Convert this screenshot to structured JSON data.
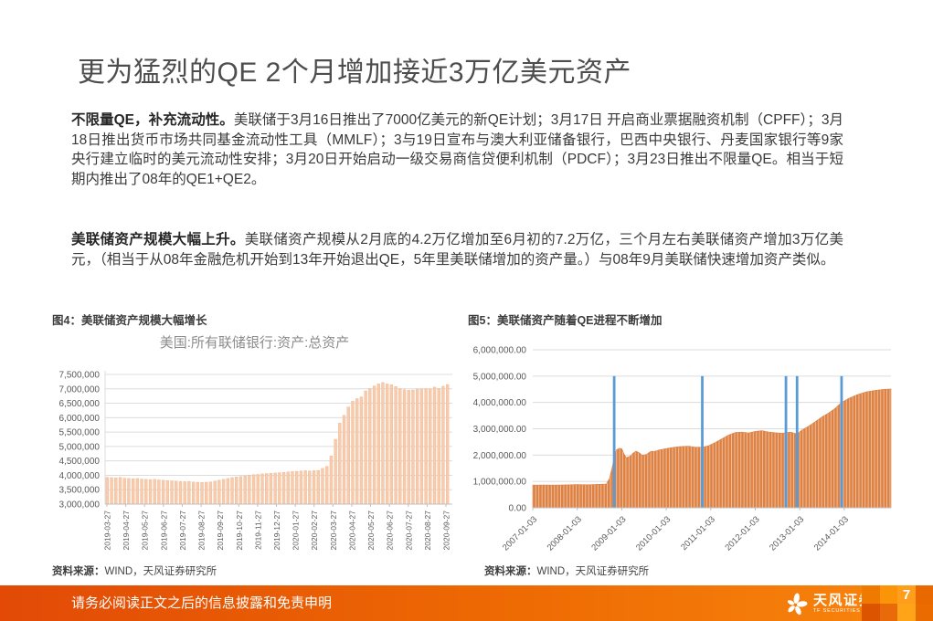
{
  "page": {
    "title": "更为猛烈的QE 2个月增加接近3万亿美元资产",
    "paragraphs": [
      {
        "lead": "不限量QE，补充流动性。",
        "text": "美联储于3月16日推出了7000亿美元的新QE计划；3月17日 开启商业票据融资机制（CPFF）；3月18日推出货币市场共同基金流动性工具（MMLF）；3与19日宣布与澳大利亚储备银行，巴西中央银行、丹麦国家银行等9家央行建立临时的美元流动性安排；3月20日开始启动一级交易商信贷便利机制（PDCF）；3月23日推出不限量QE。相当于短期内推出了08年的QE1+QE2。"
      },
      {
        "lead": "美联储资产规模大幅上升。",
        "text": "美联储资产规模从2月底的4.2万亿增加至6月初的7.2万亿，三个月左右美联储资产增加3万亿美元，（相当于从08年金融危机开始到13年开始退出QE，5年里美联储增加的资产量。）与08年9月美联储快速增加资产类似。"
      }
    ]
  },
  "chart_data": [
    {
      "id": "fig4",
      "type": "bar",
      "caption": "图4：美联储资产规模大幅增长",
      "title": "美国:所有联储银行:资产:总资产",
      "ylim": [
        3000000,
        7500000
      ],
      "ytick_step": 500000,
      "ytick_labels": [
        "3,000,000",
        "3,500,000",
        "4,000,000",
        "4,500,000",
        "5,000,000",
        "5,500,000",
        "6,000,000",
        "6,500,000",
        "7,000,000",
        "7,500,000"
      ],
      "x_tick_labels": [
        "2019-03-27",
        "2019-04-27",
        "2019-05-27",
        "2019-06-27",
        "2019-07-27",
        "2019-08-27",
        "2019-09-27",
        "2019-10-27",
        "2019-11-27",
        "2019-12-27",
        "2020-01-27",
        "2020-02-27",
        "2020-03-27",
        "2020-04-27",
        "2020-05-27",
        "2020-06-27",
        "2020-07-27",
        "2020-08-27",
        "2020-09-27"
      ],
      "values": [
        3930000,
        3920000,
        3910000,
        3930000,
        3900000,
        3890000,
        3880000,
        3890000,
        3870000,
        3860000,
        3850000,
        3860000,
        3840000,
        3830000,
        3820000,
        3810000,
        3800000,
        3790000,
        3780000,
        3790000,
        3770000,
        3760000,
        3755000,
        3760000,
        3770000,
        3800000,
        3830000,
        3860000,
        3890000,
        3920000,
        3940000,
        3960000,
        3980000,
        4000000,
        4020000,
        4030000,
        4050000,
        4060000,
        4070000,
        4080000,
        4090000,
        4100000,
        4120000,
        4130000,
        4140000,
        4150000,
        4160000,
        4150000,
        4160000,
        4170000,
        4240000,
        4310000,
        4670000,
        5250000,
        5810000,
        6080000,
        6370000,
        6570000,
        6660000,
        6720000,
        6930000,
        7010000,
        7100000,
        7170000,
        7220000,
        7170000,
        7140000,
        7080000,
        7010000,
        6970000,
        6950000,
        6960000,
        6990000,
        7000000,
        7010000,
        7000000,
        7060000,
        7010000,
        7090000,
        7150000
      ],
      "bar_color": "#F8CBAD",
      "bar_edge_color": "#EDB48C",
      "grid_color": "#DCDCDC",
      "axis_color": "#BFBFBF",
      "tick_text_color": "#595959",
      "source_label": "资料来源：",
      "source_text": "WIND，天风证券研究所"
    },
    {
      "id": "fig5",
      "type": "area",
      "caption": "图5：美联储资产随着QE进程不断增加",
      "ylim": [
        0,
        6000000
      ],
      "ytick_labels": [
        "0.00",
        "1,000,000.00",
        "2,000,000.00",
        "3,000,000.00",
        "4,000,000.00",
        "5,000,000.00",
        "6,000,000.00"
      ],
      "xlim": [
        2007.0,
        2015.05
      ],
      "x_tick_labels": [
        "2007-01-03",
        "2008-01-03",
        "2009-01-03",
        "2010-01-03",
        "2011-01-03",
        "2012-01-03",
        "2013-01-03",
        "2014-01-03"
      ],
      "x_tick_years": [
        2007,
        2008,
        2009,
        2010,
        2011,
        2012,
        2013,
        2014
      ],
      "points": [
        [
          2007.0,
          860000
        ],
        [
          2007.25,
          865000
        ],
        [
          2007.5,
          860000
        ],
        [
          2007.75,
          870000
        ],
        [
          2008.0,
          880000
        ],
        [
          2008.25,
          875000
        ],
        [
          2008.5,
          890000
        ],
        [
          2008.65,
          900000
        ],
        [
          2008.72,
          1100000
        ],
        [
          2008.78,
          1500000
        ],
        [
          2008.83,
          1900000
        ],
        [
          2008.88,
          2200000
        ],
        [
          2008.95,
          2260000
        ],
        [
          2009.0,
          2240000
        ],
        [
          2009.05,
          2050000
        ],
        [
          2009.1,
          1900000
        ],
        [
          2009.18,
          1950000
        ],
        [
          2009.25,
          2070000
        ],
        [
          2009.32,
          2150000
        ],
        [
          2009.4,
          2080000
        ],
        [
          2009.45,
          2000000
        ],
        [
          2009.55,
          2020000
        ],
        [
          2009.65,
          2140000
        ],
        [
          2009.75,
          2150000
        ],
        [
          2009.85,
          2200000
        ],
        [
          2009.95,
          2230000
        ],
        [
          2010.1,
          2280000
        ],
        [
          2010.3,
          2320000
        ],
        [
          2010.5,
          2340000
        ],
        [
          2010.65,
          2300000
        ],
        [
          2010.81,
          2300000
        ],
        [
          2010.95,
          2350000
        ],
        [
          2011.1,
          2480000
        ],
        [
          2011.25,
          2620000
        ],
        [
          2011.4,
          2760000
        ],
        [
          2011.55,
          2860000
        ],
        [
          2011.7,
          2870000
        ],
        [
          2011.85,
          2840000
        ],
        [
          2012.0,
          2900000
        ],
        [
          2012.15,
          2930000
        ],
        [
          2012.3,
          2880000
        ],
        [
          2012.45,
          2850000
        ],
        [
          2012.6,
          2830000
        ],
        [
          2012.69,
          2850000
        ],
        [
          2012.8,
          2870000
        ],
        [
          2012.94,
          2800000
        ],
        [
          2013.05,
          2950000
        ],
        [
          2013.2,
          3100000
        ],
        [
          2013.35,
          3270000
        ],
        [
          2013.5,
          3450000
        ],
        [
          2013.65,
          3600000
        ],
        [
          2013.8,
          3780000
        ],
        [
          2013.94,
          4000000
        ],
        [
          2014.1,
          4150000
        ],
        [
          2014.3,
          4300000
        ],
        [
          2014.5,
          4400000
        ],
        [
          2014.7,
          4460000
        ],
        [
          2014.9,
          4500000
        ],
        [
          2015.05,
          4510000
        ]
      ],
      "area_color": "#DE8244",
      "qe_lines": {
        "years": [
          2008.83,
          2010.81,
          2012.69,
          2012.94,
          2013.94
        ],
        "top_value": 5000000,
        "color": "#5B9BD5"
      },
      "grid_color": "#DCDCDC",
      "axis_color": "#BFBFBF",
      "tick_text_color": "#595959",
      "source_label": "资料来源：",
      "source_text": "WIND，天风证券研究所"
    }
  ],
  "footer": {
    "disclaimer": "请务必阅读正文之后的信息披露和免责申明",
    "brand": "天风证券",
    "brand_sub": "TF SECURITIES",
    "page_number": "7",
    "gradient": [
      "#E24A06",
      "#EE6A03",
      "#F8860D"
    ],
    "mosaic_colors": [
      "#F07A00",
      "#FB9406",
      "#FF9D1C",
      "#E96900",
      "#DC5400",
      "#E96A08",
      "#FFA319",
      "#EA6C00"
    ]
  }
}
